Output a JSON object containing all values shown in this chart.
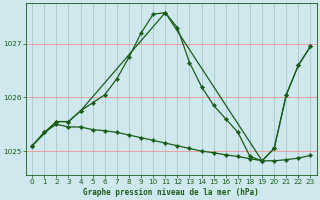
{
  "title": "Graphe pression niveau de la mer (hPa)",
  "background_color": "#cfe8ed",
  "grid_color_h": "#f0b8b8",
  "grid_color_v": "#b8d8e0",
  "line_color": "#1a5c1a",
  "xlim": [
    -0.5,
    23.5
  ],
  "ylim": [
    1024.55,
    1027.75
  ],
  "yticks": [
    1025,
    1026,
    1027
  ],
  "xticks": [
    0,
    1,
    2,
    3,
    4,
    5,
    6,
    7,
    8,
    9,
    10,
    11,
    12,
    13,
    14,
    15,
    16,
    17,
    18,
    19,
    20,
    21,
    22,
    23
  ],
  "series1_x": [
    0,
    1,
    2,
    3,
    4,
    5,
    6,
    7,
    8,
    9,
    10,
    11,
    12,
    13,
    14,
    15,
    16,
    17,
    18,
    19,
    20,
    21,
    22,
    23
  ],
  "series1_y": [
    1025.1,
    1025.35,
    1025.55,
    1025.55,
    1025.75,
    1025.9,
    1026.05,
    1026.35,
    1026.75,
    1027.2,
    1027.55,
    1027.58,
    1027.3,
    1026.65,
    1026.2,
    1025.85,
    1025.6,
    1025.35,
    1024.9,
    1024.82,
    1025.05,
    1026.05,
    1026.6,
    1026.95
  ],
  "series2_x": [
    0,
    1,
    2,
    3,
    4,
    5,
    6,
    7,
    8,
    9,
    10,
    11,
    12,
    13,
    14,
    15,
    16,
    17,
    18,
    19,
    20,
    21,
    22,
    23
  ],
  "series2_y": [
    1025.1,
    1025.35,
    1025.5,
    1025.45,
    1025.45,
    1025.4,
    1025.38,
    1025.35,
    1025.3,
    1025.25,
    1025.2,
    1025.15,
    1025.1,
    1025.05,
    1025.0,
    1024.97,
    1024.93,
    1024.9,
    1024.86,
    1024.82,
    1024.82,
    1024.84,
    1024.87,
    1024.92
  ],
  "series3_x": [
    0,
    2,
    3,
    4,
    11,
    19,
    20,
    21,
    22,
    23
  ],
  "series3_y": [
    1025.1,
    1025.55,
    1025.55,
    1025.75,
    1027.58,
    1024.82,
    1025.05,
    1026.05,
    1026.6,
    1026.95
  ]
}
